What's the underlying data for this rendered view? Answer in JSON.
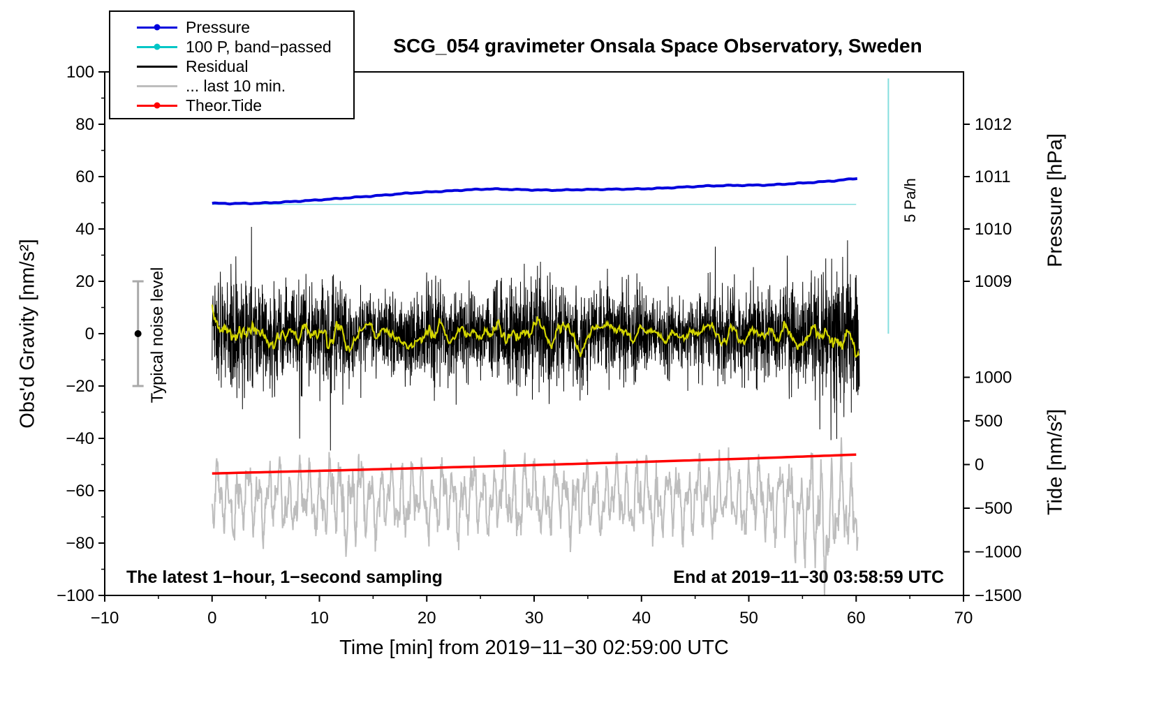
{
  "chart_data": {
    "type": "line",
    "title": "SCG_054 gravimeter Onsala Space Observatory, Sweden",
    "xlabel": "Time [min] from 2019−11−30 02:59:00 UTC",
    "ylabel_left": "Obs'd Gravity [nm/s²]",
    "ylabel_right_pressure": "Pressure [hPa]",
    "ylabel_right_tide": "Tide [nm/s²]",
    "axes": {
      "x": {
        "range": [
          -10,
          70
        ],
        "major_ticks": [
          -10,
          0,
          10,
          20,
          30,
          40,
          50,
          60,
          70
        ],
        "minor_step": 5
      },
      "y_left": {
        "range": [
          -100,
          100
        ],
        "major_ticks": [
          -100,
          -80,
          -60,
          -40,
          -20,
          0,
          20,
          40,
          60,
          80,
          100
        ],
        "minor_step": 10
      },
      "y_right_pressure": {
        "ticks": [
          1012,
          1011,
          1010,
          1009
        ],
        "ref_value": 1010,
        "ref_g": 40,
        "g_per_unit": 20
      },
      "y_right_tide": {
        "ticks": [
          1000,
          500,
          0,
          -500,
          -1000,
          -1500
        ],
        "ref_g": -50,
        "units_per_g": 30
      }
    },
    "legend": {
      "items": [
        {
          "label": "Pressure",
          "color": "#0000dd",
          "marker": true
        },
        {
          "label": "100 P, band−passed",
          "color": "#00c6c6",
          "marker": true
        },
        {
          "label": "Residual",
          "color": "#000000",
          "marker": false
        },
        {
          "label": "... last 10 min.",
          "color": "#bdbdbd",
          "marker": false
        },
        {
          "label": "Theor.Tide",
          "color": "#ff0000",
          "marker": true
        }
      ]
    },
    "series": {
      "pressure": {
        "label": "Pressure",
        "color": "#0000dd",
        "x": [
          0,
          2,
          4,
          6,
          8,
          10,
          12,
          14,
          16,
          18,
          20,
          22,
          24,
          26,
          28,
          30,
          32,
          34,
          36,
          38,
          40,
          42,
          44,
          46,
          48,
          50,
          52,
          54,
          56,
          58,
          60
        ],
        "hPa": [
          1010.49,
          1010.485,
          1010.49,
          1010.505,
          1010.53,
          1010.555,
          1010.585,
          1010.615,
          1010.645,
          1010.68,
          1010.705,
          1010.725,
          1010.75,
          1010.765,
          1010.755,
          1010.745,
          1010.74,
          1010.75,
          1010.755,
          1010.76,
          1010.765,
          1010.78,
          1010.8,
          1010.82,
          1010.83,
          1010.835,
          1010.84,
          1010.865,
          1010.89,
          1010.92,
          1010.965
        ]
      },
      "band_passed": {
        "label": "100 P, band−passed",
        "color": "#85dede",
        "x": [
          0,
          60
        ],
        "gravity": [
          49.4,
          49.4
        ]
      },
      "residual": {
        "label": "Residual",
        "color": "#000000",
        "points": 3600,
        "x_range": [
          0,
          60.3
        ],
        "sigma": 8.5,
        "burst_start": 56.5,
        "burst_gain": 0.75,
        "spike_prob": 0.004,
        "spike_gain": 2.2,
        "seed": 20191130
      },
      "residual_smoothed": {
        "color": "#d2d400",
        "window_s": 45,
        "gain": 1.8,
        "end_dip": {
          "t": 59.6,
          "depth": 3.5,
          "width": 0.8
        }
      },
      "last10": {
        "label": "... last 10 min.",
        "color": "#bdbdbd",
        "center_gravity": -63,
        "seed": 35859,
        "noise_amp": 2.5,
        "components": [
          {
            "amp": 8,
            "freq": 1.05
          },
          {
            "amp": 5,
            "freq": 2.2
          },
          {
            "amp": 3.5,
            "freq": 0.38
          }
        ],
        "end_bump": {
          "t": 57,
          "width": 2.5,
          "gain": 0.7,
          "offset": -8
        },
        "mid_bump": {
          "t": 13,
          "width": 1.5,
          "gain": 0.3
        }
      },
      "tide": {
        "label": "Theor.Tide",
        "color": "#ff0000",
        "x": [
          0,
          10,
          20,
          30,
          40,
          50,
          60
        ],
        "tide_nms2": [
          -102,
          -72,
          -39,
          -6,
          30,
          69,
          114
        ]
      }
    },
    "noise_bar": {
      "x_min": -6.9,
      "center_g": 0,
      "half_height_g": 20,
      "color": "#aaaaaa"
    },
    "scale_bar": {
      "x_min": 63,
      "g_top": 97.5,
      "g_bottom": 0,
      "color": "#85dede"
    },
    "annotations": {
      "noise_label": "Typical noise level",
      "rate_label": "5 Pa/h",
      "bottom_left": "The latest 1−hour, 1−second sampling",
      "bottom_right": "End at 2019−11−30 03:58:59 UTC"
    }
  }
}
